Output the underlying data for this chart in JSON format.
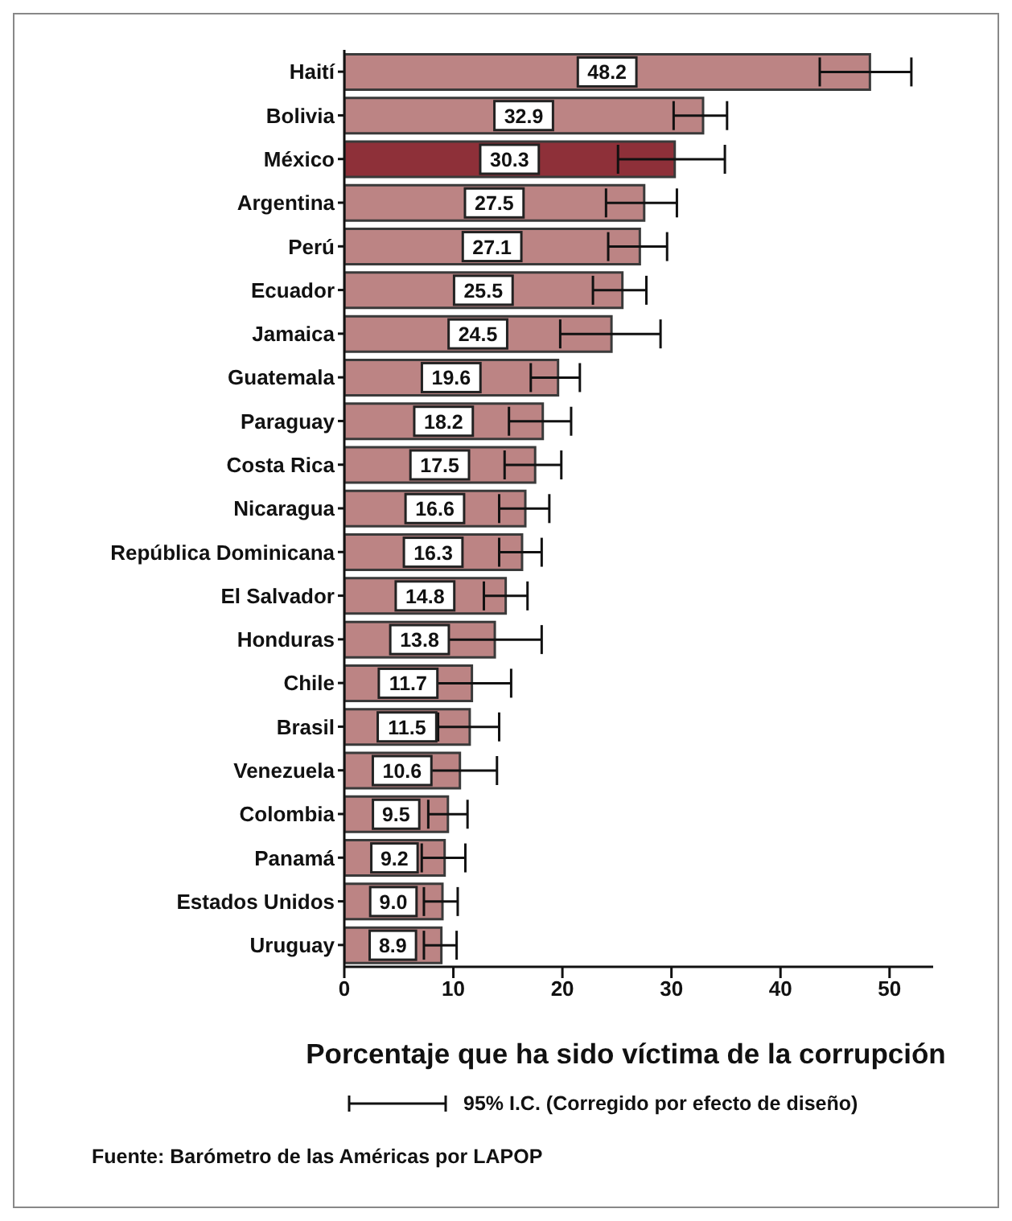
{
  "chart_data": {
    "type": "bar",
    "orientation": "horizontal",
    "xlabel": "Porcentaje que ha sido víctima de la corrupción",
    "categories": [
      "Haití",
      "Bolivia",
      "México",
      "Argentina",
      "Perú",
      "Ecuador",
      "Jamaica",
      "Guatemala",
      "Paraguay",
      "Costa Rica",
      "Nicaragua",
      "República Dominicana",
      "El Salvador",
      "Honduras",
      "Chile",
      "Brasil",
      "Venezuela",
      "Colombia",
      "Panamá",
      "Estados Unidos",
      "Uruguay"
    ],
    "values": [
      48.2,
      32.9,
      30.3,
      27.5,
      27.1,
      25.5,
      24.5,
      19.6,
      18.2,
      17.5,
      16.6,
      16.3,
      14.8,
      13.8,
      11.7,
      11.5,
      10.6,
      9.5,
      9.2,
      9.0,
      8.9
    ],
    "value_labels": [
      "48.2",
      "32.9",
      "30.3",
      "27.5",
      "27.1",
      "25.5",
      "24.5",
      "19.6",
      "18.2",
      "17.5",
      "16.6",
      "16.3",
      "14.8",
      "13.8",
      "11.7",
      "11.5",
      "10.6",
      "9.5",
      "9.2",
      "9.0",
      "8.9"
    ],
    "errors": [
      [
        43.6,
        52.0
      ],
      [
        30.2,
        35.1
      ],
      [
        25.1,
        34.9
      ],
      [
        24.0,
        30.5
      ],
      [
        24.2,
        29.6
      ],
      [
        22.8,
        27.7
      ],
      [
        19.8,
        29.0
      ],
      [
        17.1,
        21.6
      ],
      [
        15.1,
        20.8
      ],
      [
        14.7,
        19.9
      ],
      [
        14.2,
        18.8
      ],
      [
        14.2,
        18.1
      ],
      [
        12.8,
        16.8
      ],
      [
        9.5,
        18.1
      ],
      [
        7.8,
        15.3
      ],
      [
        8.6,
        14.2
      ],
      [
        6.9,
        14.0
      ],
      [
        7.7,
        11.3
      ],
      [
        7.1,
        11.1
      ],
      [
        7.3,
        10.4
      ],
      [
        7.3,
        10.3
      ]
    ],
    "colors": [
      "#bc8484",
      "#bc8484",
      "#8e3039",
      "#bc8484",
      "#bc8484",
      "#bc8484",
      "#bc8484",
      "#bc8484",
      "#bc8484",
      "#bc8484",
      "#bc8484",
      "#bc8484",
      "#bc8484",
      "#bc8484",
      "#bc8484",
      "#bc8484",
      "#bc8484",
      "#bc8484",
      "#bc8484",
      "#bc8484",
      "#bc8484"
    ],
    "xlim": [
      0,
      54
    ],
    "xticks": [
      0,
      10,
      20,
      30,
      40,
      50
    ],
    "grid": false,
    "legend": false,
    "annotations": [
      "95% I.C. (Corregido por efecto de diseño)",
      "Fuente: Barómetro de las Américas por LAPOP"
    ]
  }
}
